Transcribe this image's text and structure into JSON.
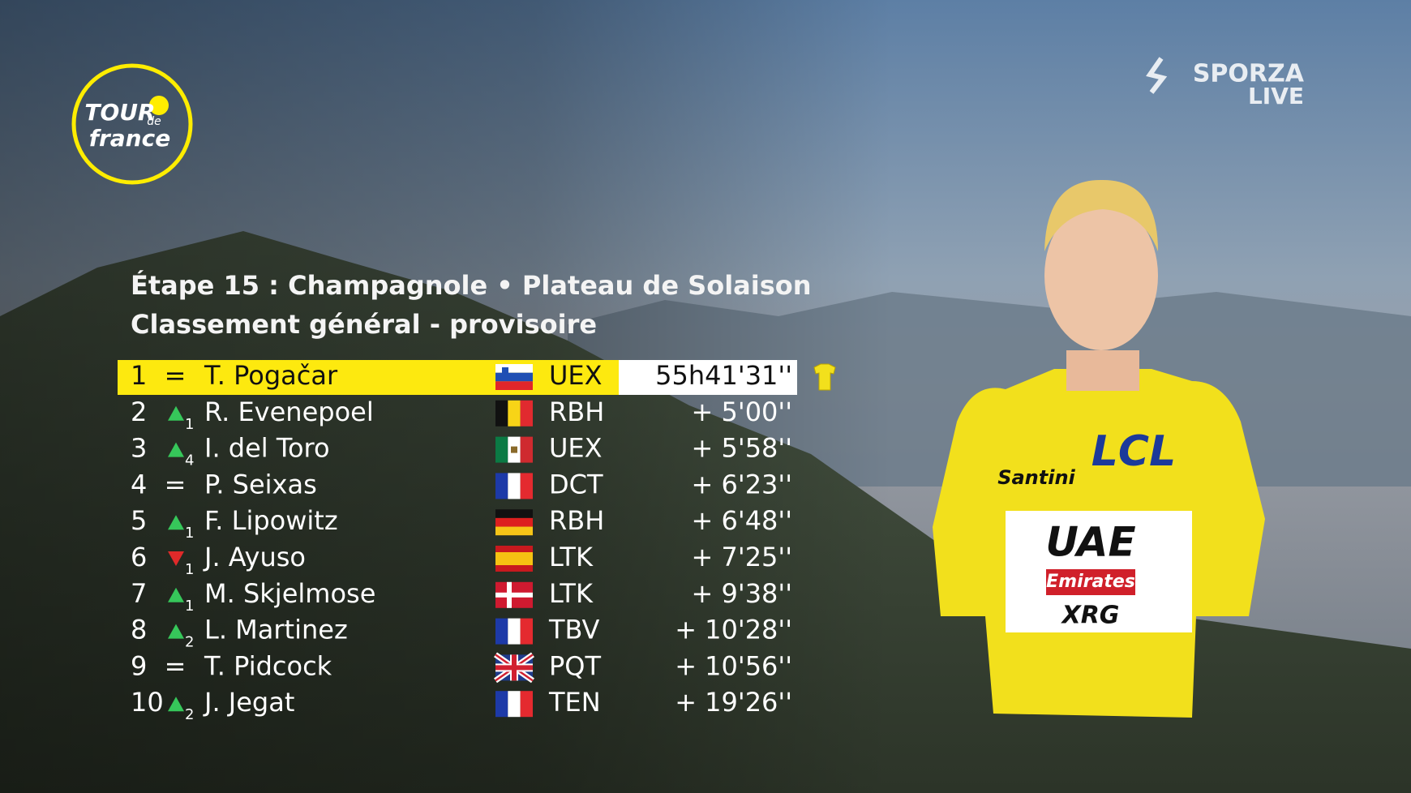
{
  "logo": {
    "line1": "TOUR",
    "line2": "de",
    "line3": "france"
  },
  "broadcaster": {
    "name": "SPORZA",
    "live": "LIVE"
  },
  "header": {
    "stage": "Étape 15 : Champagnole • Plateau de Solaison",
    "classification": "Classement général - provisoire"
  },
  "standings": [
    {
      "rank": 1,
      "move": "=",
      "name": "T. Pogačar",
      "team": "UEX",
      "time": "55h41'31''"
    },
    {
      "rank": 2,
      "move": {
        "direction": "up",
        "places": 1
      },
      "name": "R. Evenepoel",
      "team": "RBH",
      "time": "+ 5'00''"
    },
    {
      "rank": 3,
      "move": {
        "direction": "up",
        "places": 4
      },
      "name": "I. del Toro",
      "team": "UEX",
      "time": "+ 5'58''"
    },
    {
      "rank": 4,
      "move": "=",
      "name": "P. Seixas",
      "team": "DCT",
      "time": "+ 6'23''"
    },
    {
      "rank": 5,
      "move": {
        "direction": "up",
        "places": 1
      },
      "name": "F. Lipowitz",
      "team": "RBH",
      "time": "+ 6'48''"
    },
    {
      "rank": 6,
      "move": {
        "direction": "down",
        "places": 1
      },
      "name": "J. Ayuso",
      "team": "LTK",
      "time": "+ 7'25''"
    },
    {
      "rank": 7,
      "move": {
        "direction": "up",
        "places": 1
      },
      "name": "M. Skjelmose",
      "team": "LTK",
      "time": "+ 9'38''"
    },
    {
      "rank": 8,
      "move": {
        "direction": "up",
        "places": 2
      },
      "name": "L. Martinez",
      "team": "TBV",
      "time": "+ 10'28''"
    },
    {
      "rank": 9,
      "move": "=",
      "name": "T. Pidcock",
      "team": "PQT",
      "time": "+ 10'56''"
    },
    {
      "rank": 10,
      "move": {
        "direction": "up",
        "places": 2
      },
      "name": "J. Jegat",
      "team": "TEN",
      "time": "+ 19'26''"
    }
  ],
  "rider_photo": {
    "jersey_texts": [
      "LCL",
      "Santini",
      "UAE",
      "Emirates",
      "XRG"
    ]
  }
}
